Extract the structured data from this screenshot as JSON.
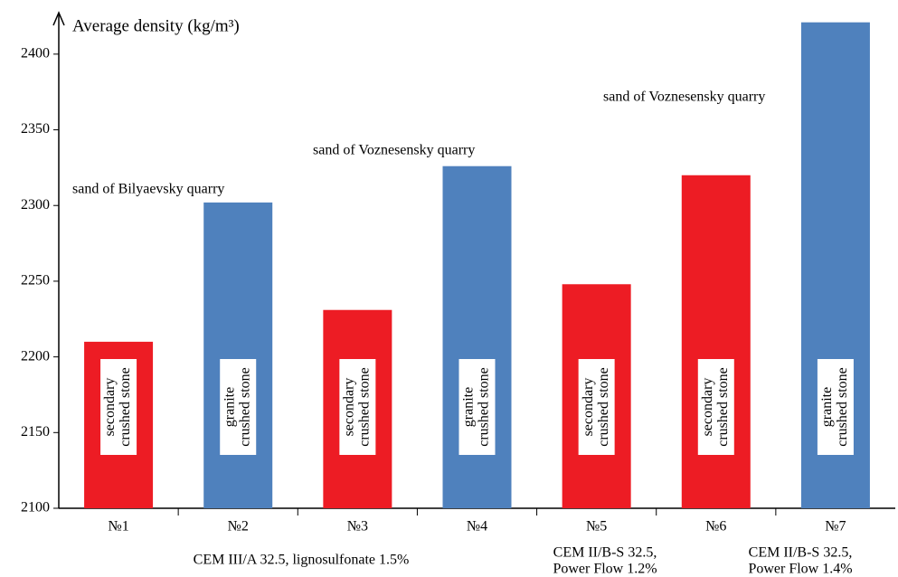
{
  "chart_data": {
    "type": "bar",
    "y_label": "Average density (kg/m³)",
    "categories": [
      "№1",
      "№2",
      "№3",
      "№4",
      "№5",
      "№6",
      "№7"
    ],
    "values": [
      2210,
      2302,
      2231,
      2326,
      2248,
      2320,
      2421
    ],
    "colors": [
      "#ed1c24",
      "#4f81bd",
      "#ed1c24",
      "#4f81bd",
      "#ed1c24",
      "#ed1c24",
      "#4f81bd"
    ],
    "bar_labels": [
      [
        "secondary",
        "crushed stone"
      ],
      [
        "granite",
        "crushed stone"
      ],
      [
        "secondary",
        "crushed stone"
      ],
      [
        "granite",
        "crushed stone"
      ],
      [
        "secondary",
        "crushed stone"
      ],
      [
        "secondary",
        "crushed stone"
      ],
      [
        "granite",
        "crushed stone"
      ]
    ],
    "annotations": [
      "sand of Bilyaevsky quarry",
      "sand of Voznesensky quarry",
      "sand of Voznesensky quarry"
    ],
    "group_labels": [
      [
        "CEM III/A 32.5,  lignosulfonate 1.5%"
      ],
      [
        "CEM II/B-S 32.5,",
        "Power Flow 1.2%"
      ],
      [
        "CEM II/B-S 32.5,",
        "Power Flow 1.4%"
      ]
    ],
    "ylim": [
      2100,
      2425
    ],
    "yticks": [
      2100,
      2150,
      2200,
      2250,
      2300,
      2350,
      2400
    ],
    "grid": false
  }
}
